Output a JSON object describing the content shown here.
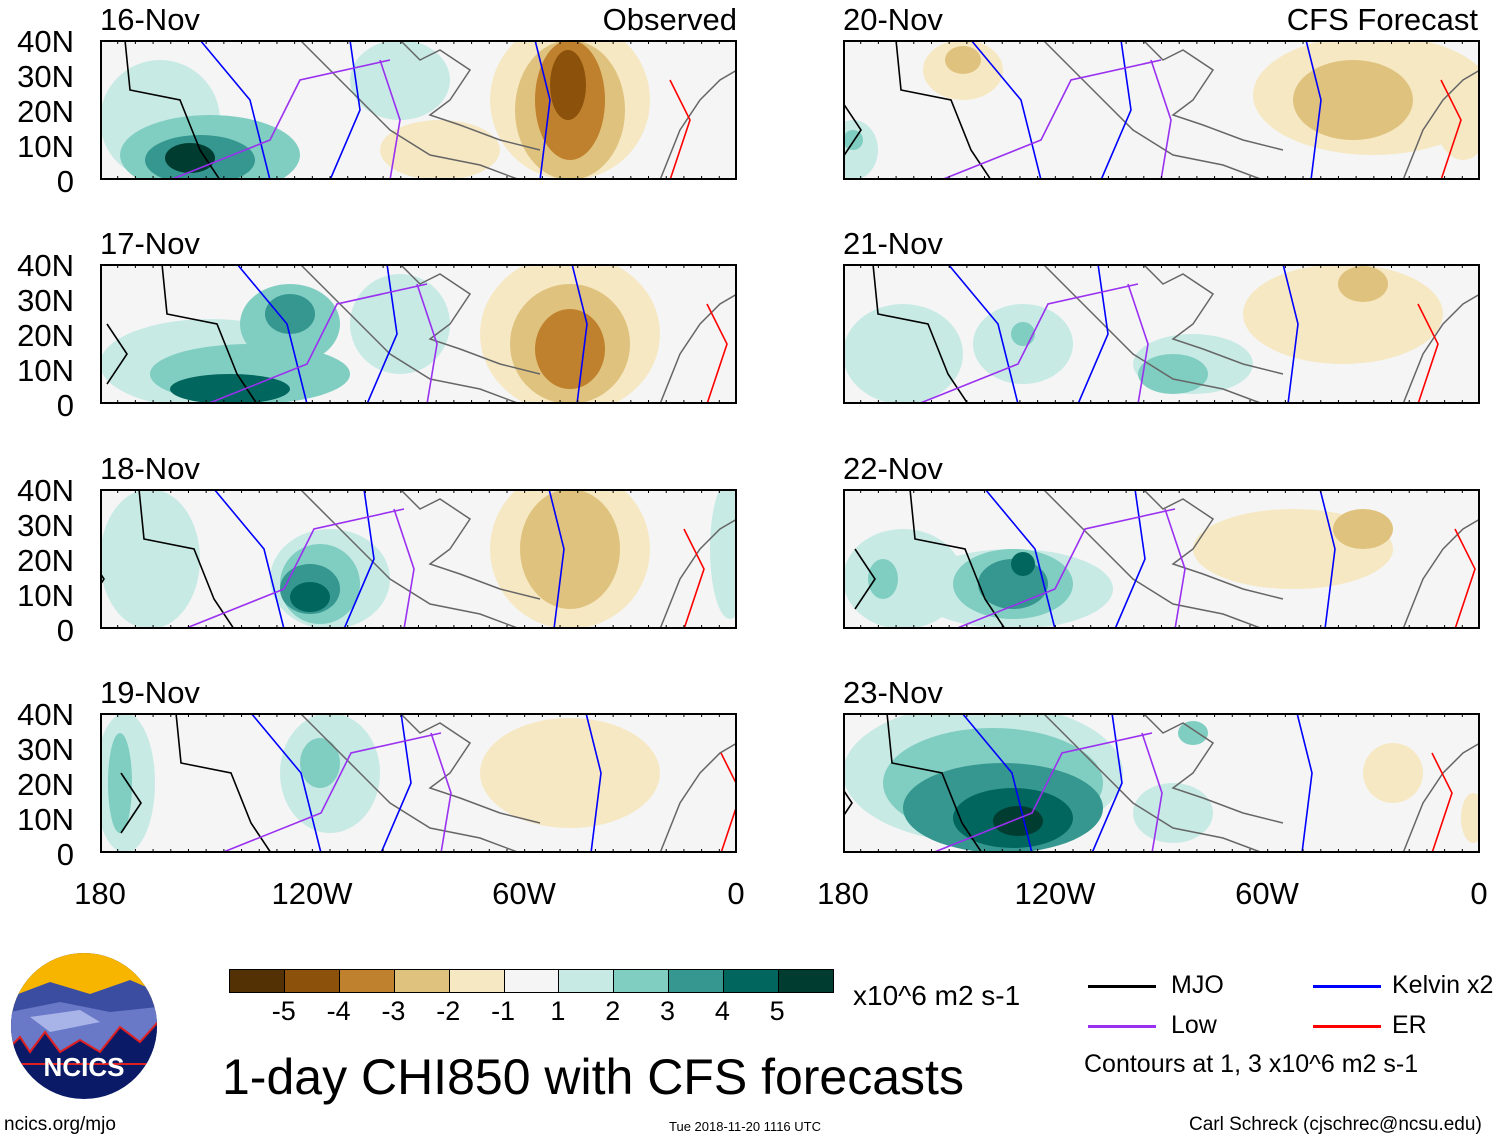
{
  "title": "1-day CHI850 with CFS forecasts",
  "observed_label": "Observed",
  "forecast_label": "CFS Forecast",
  "units": "x10^6 m2 s-1",
  "panels": [
    {
      "date": "16-Nov",
      "group": "observed"
    },
    {
      "date": "17-Nov",
      "group": "observed"
    },
    {
      "date": "18-Nov",
      "group": "observed"
    },
    {
      "date": "19-Nov",
      "group": "observed"
    },
    {
      "date": "20-Nov",
      "group": "forecast"
    },
    {
      "date": "21-Nov",
      "group": "forecast"
    },
    {
      "date": "22-Nov",
      "group": "forecast"
    },
    {
      "date": "23-Nov",
      "group": "forecast"
    }
  ],
  "lat_labels": [
    "40N",
    "30N",
    "20N",
    "10N",
    "0"
  ],
  "lon_labels": [
    "180",
    "120W",
    "60W",
    "0"
  ],
  "colorbar": {
    "ticks": [
      "-5",
      "-4",
      "-3",
      "-2",
      "-1",
      "1",
      "2",
      "3",
      "4",
      "5"
    ],
    "colors": [
      "#543005",
      "#8c510a",
      "#bf812d",
      "#dfc27d",
      "#f6e8c3",
      "#f5f5f5",
      "#c7eae5",
      "#80cdc1",
      "#35978f",
      "#01665e",
      "#003c30"
    ]
  },
  "legend": [
    {
      "label": "MJO",
      "color": "#000000"
    },
    {
      "label": "Kelvin x2",
      "color": "#0000ff"
    },
    {
      "label": "Low",
      "color": "#9a30f0"
    },
    {
      "label": "ER",
      "color": "#ff0000"
    }
  ],
  "contour_note": "Contours at 1, 3 x10^6 m2 s-1",
  "logo_text": "NCICS",
  "footer": {
    "url": "ncics.org/mjo",
    "timestamp": "Tue 2018-11-20 1116 UTC",
    "author": "Carl Schreck (cjschrec@ncsu.edu)"
  }
}
